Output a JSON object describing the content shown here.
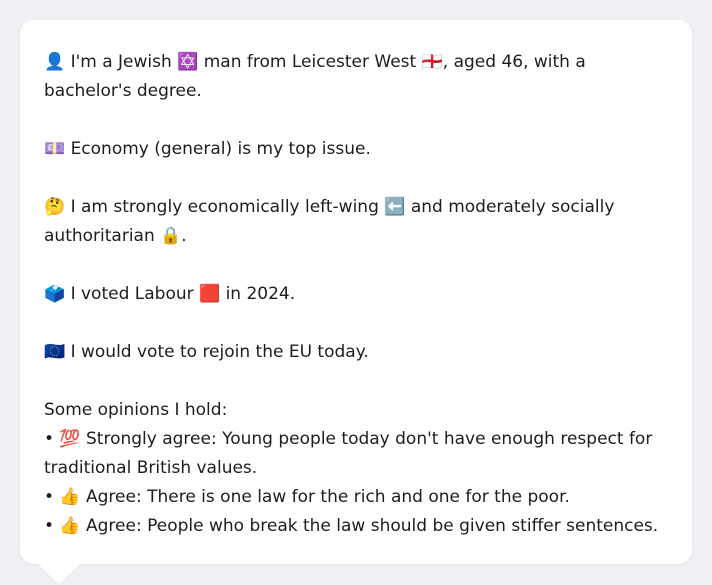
{
  "persona": {
    "intro": "👤 I'm a Jewish ✡️ man from Leicester West 🏴󠁧󠁢󠁥󠁮󠁧󠁿, aged 46, with a bachelor's degree.",
    "top_issue": "💷 Economy (general) is my top issue.",
    "ideology": "🤔 I am strongly economically left-wing ⬅️ and moderately socially authoritarian 🔒.",
    "vote": "🗳️ I voted Labour 🟥 in 2024.",
    "eu": "🇪🇺 I would vote to rejoin the EU today.",
    "opinions_heading": "Some opinions I hold:",
    "opinions": [
      "• 💯 Strongly agree: Young people today don't have enough respect for traditional British values.",
      "• 👍 Agree: There is one law for the rich and one for the poor.",
      "• 👍 Agree: People who break the law should be given stiffer sentences."
    ]
  }
}
